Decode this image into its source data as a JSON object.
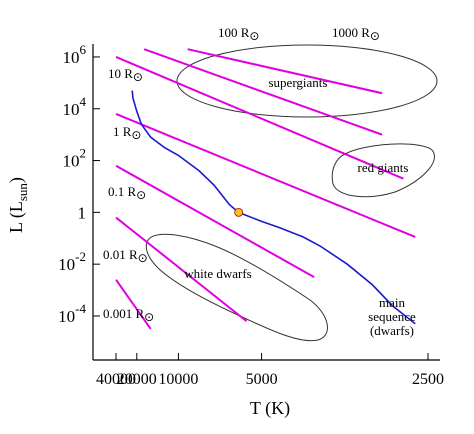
{
  "chart_data": {
    "type": "line",
    "title": "",
    "xlabel": "T (K)",
    "ylabel_main": "L (L",
    "ylabel_sub": "sun",
    "ylabel_close": ")",
    "x_scale": "reciprocal",
    "y_scale": "log",
    "xlim": [
      40000,
      2500
    ],
    "ylim_log10": [
      -5.7,
      6.5
    ],
    "x_ticks": [
      {
        "value": 40000,
        "label": "40000"
      },
      {
        "value": 20000,
        "label": "20000"
      },
      {
        "value": 10000,
        "label": "10000"
      },
      {
        "value": 5000,
        "label": "5000"
      },
      {
        "value": 2500,
        "label": "2500"
      }
    ],
    "y_ticks": [
      {
        "log": 6,
        "base": "10",
        "exp": "6"
      },
      {
        "log": 4,
        "base": "10",
        "exp": "4"
      },
      {
        "log": 2,
        "base": "10",
        "exp": "2"
      },
      {
        "log": 0,
        "base": "1",
        "exp": ""
      },
      {
        "log": -2,
        "base": "10",
        "exp": "-2"
      },
      {
        "log": -4,
        "base": "10",
        "exp": "-4"
      }
    ],
    "radius_lines": [
      {
        "label": "1000 R",
        "symbol": "⊙",
        "segment": [
          [
            9000,
            6.3
          ],
          [
            2900,
            4.6
          ]
        ]
      },
      {
        "label": "100 R",
        "symbol": "⊙",
        "segment": [
          [
            17000,
            6.3
          ],
          [
            2900,
            3.0
          ]
        ]
      },
      {
        "label": "10 R",
        "symbol": "⊙",
        "segment": [
          [
            40000,
            6.0
          ],
          [
            2700,
            1.3
          ]
        ]
      },
      {
        "label": "1 R",
        "symbol": "⊙",
        "segment": [
          [
            40000,
            3.8
          ],
          [
            2600,
            -0.95
          ]
        ]
      },
      {
        "label": "0.1 R",
        "symbol": "⊙",
        "segment": [
          [
            40000,
            1.8
          ],
          [
            3800,
            -2.5
          ]
        ]
      },
      {
        "label": "0.01 R",
        "symbol": "⊙",
        "segment": [
          [
            40000,
            -0.2
          ],
          [
            5500,
            -4.2
          ]
        ]
      },
      {
        "label": "0.001 R",
        "symbol": "⊙",
        "segment": [
          [
            40000,
            -2.6
          ],
          [
            15000,
            -4.5
          ]
        ]
      }
    ],
    "main_sequence": [
      [
        22500,
        4.7
      ],
      [
        22000,
        4.4
      ],
      [
        20000,
        3.9
      ],
      [
        18000,
        3.4
      ],
      [
        15000,
        2.9
      ],
      [
        12000,
        2.5
      ],
      [
        10000,
        2.2
      ],
      [
        8000,
        1.6
      ],
      [
        7000,
        1.05
      ],
      [
        6200,
        0.3
      ],
      [
        5800,
        0.0
      ],
      [
        5000,
        -0.35
      ],
      [
        4500,
        -0.6
      ],
      [
        4000,
        -0.95
      ],
      [
        3700,
        -1.3
      ],
      [
        3300,
        -2.0
      ],
      [
        3000,
        -2.8
      ],
      [
        2800,
        -3.6
      ],
      [
        2600,
        -4.3
      ]
    ],
    "sun": {
      "T": 5800,
      "L_log": 0.0,
      "color": "#f5c518"
    },
    "regions": [
      {
        "label": "supergiants",
        "color": "#333333"
      },
      {
        "label": "red giants",
        "color": "#333333"
      },
      {
        "label": "white dwarfs",
        "color": "#333333"
      },
      {
        "label_lines": [
          "main",
          "sequence",
          "(dwarfs)"
        ]
      }
    ],
    "colors": {
      "radius_line": "#e000e0",
      "main_sequence": "#1a1acc",
      "axis": "#000000"
    }
  }
}
